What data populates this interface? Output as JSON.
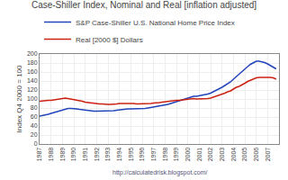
{
  "chart_data": {
    "type": "line",
    "title": "Case-Shiller Index, Nominal and Real [inflation adjusted]",
    "ylabel": "Index Q4 2000 = 100",
    "annotations": [
      "http://calculatedrisk.blogspot.com/"
    ],
    "x": [
      1987.0,
      1987.25,
      1987.5,
      1987.75,
      1988.0,
      1988.25,
      1988.5,
      1988.75,
      1989.0,
      1989.25,
      1989.5,
      1989.75,
      1990.0,
      1990.25,
      1990.5,
      1990.75,
      1991.0,
      1991.25,
      1991.5,
      1991.75,
      1992.0,
      1992.25,
      1992.5,
      1992.75,
      1993.0,
      1993.25,
      1993.5,
      1993.75,
      1994.0,
      1994.25,
      1994.5,
      1994.75,
      1995.0,
      1995.25,
      1995.5,
      1995.75,
      1996.0,
      1996.25,
      1996.5,
      1996.75,
      1997.0,
      1997.25,
      1997.5,
      1997.75,
      1998.0,
      1998.25,
      1998.5,
      1998.75,
      1999.0,
      1999.25,
      1999.5,
      1999.75,
      2000.0,
      2000.25,
      2000.5,
      2000.75,
      2001.0,
      2001.25,
      2001.5,
      2001.75,
      2002.0,
      2002.25,
      2002.5,
      2002.75,
      2003.0,
      2003.25,
      2003.5,
      2003.75,
      2004.0,
      2004.25,
      2004.5,
      2004.75,
      2005.0,
      2005.25,
      2005.5,
      2005.75,
      2006.0,
      2006.25,
      2006.5,
      2006.75,
      2007.0,
      2007.25,
      2007.5,
      2007.75
    ],
    "series": [
      {
        "name": "S&P Case-Shiller U.S. National Home Price Index",
        "color": "#2244bb",
        "values": [
          62,
          63,
          65,
          66,
          68,
          70,
          72,
          74,
          76,
          78,
          79,
          79,
          79,
          78,
          77,
          76,
          75,
          74,
          74,
          73,
          73,
          73,
          73,
          73,
          73,
          74,
          74,
          75,
          76,
          77,
          78,
          78,
          78,
          78,
          78,
          78,
          79,
          79,
          80,
          81,
          82,
          83,
          85,
          86,
          87,
          88,
          90,
          92,
          94,
          96,
          98,
          100,
          102,
          104,
          106,
          106,
          107,
          108,
          110,
          111,
          113,
          116,
          119,
          122,
          126,
          130,
          134,
          138,
          144,
          150,
          155,
          160,
          166,
          172,
          177,
          181,
          184,
          184,
          183,
          181,
          178,
          174,
          170,
          167
        ]
      },
      {
        "name": "Real [2000 $] Dollars",
        "color": "#cc2211",
        "values": [
          95,
          96,
          97,
          97,
          97,
          98,
          99,
          100,
          101,
          102,
          101,
          100,
          99,
          97,
          96,
          95,
          93,
          92,
          91,
          90,
          90,
          89,
          89,
          88,
          88,
          88,
          88,
          89,
          90,
          90,
          91,
          90,
          90,
          90,
          89,
          89,
          89,
          89,
          89,
          90,
          91,
          91,
          92,
          93,
          94,
          94,
          95,
          96,
          97,
          97,
          98,
          99,
          100,
          101,
          101,
          100,
          100,
          100,
          101,
          101,
          102,
          104,
          106,
          108,
          110,
          113,
          116,
          118,
          122,
          126,
          128,
          131,
          135,
          139,
          142,
          145,
          147,
          148,
          148,
          148,
          149,
          148,
          147,
          144
        ]
      }
    ],
    "xlim": [
      1987,
      2008
    ],
    "xticks": [
      1987,
      1988,
      1989,
      1990,
      1991,
      1992,
      1993,
      1994,
      1995,
      1996,
      1997,
      1998,
      1999,
      2000,
      2001,
      2002,
      2003,
      2004,
      2005,
      2006,
      2007
    ],
    "ylim": [
      0,
      200
    ],
    "yticks": [
      0,
      20,
      40,
      60,
      80,
      100,
      120,
      140,
      160,
      180,
      200
    ],
    "grid": true,
    "legend": "upper left"
  }
}
